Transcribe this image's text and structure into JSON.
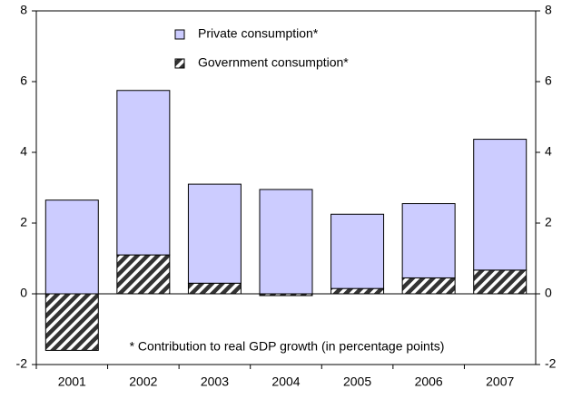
{
  "chart_data": {
    "type": "stacked_bar",
    "categories": [
      "2001",
      "2002",
      "2003",
      "2004",
      "2005",
      "2006",
      "2007"
    ],
    "series": [
      {
        "name": "Private consumption*",
        "color": "#ccccff",
        "values": [
          2.65,
          4.65,
          2.8,
          2.95,
          2.1,
          2.1,
          3.7
        ]
      },
      {
        "name": "Government consumption*",
        "color": "#333333",
        "pattern": "hatch",
        "values": [
          -1.6,
          1.1,
          0.3,
          -0.05,
          0.15,
          0.45,
          0.67
        ]
      }
    ],
    "ylim": [
      -2,
      8
    ],
    "yticks": [
      -2,
      0,
      2,
      4,
      6,
      8
    ],
    "y2lim": [
      -2,
      8
    ],
    "y2ticks": [
      -2,
      0,
      2,
      4,
      6,
      8
    ],
    "annotation": "* Contribution to real GDP growth (in percentage points)",
    "grid": false,
    "legend": "top"
  }
}
